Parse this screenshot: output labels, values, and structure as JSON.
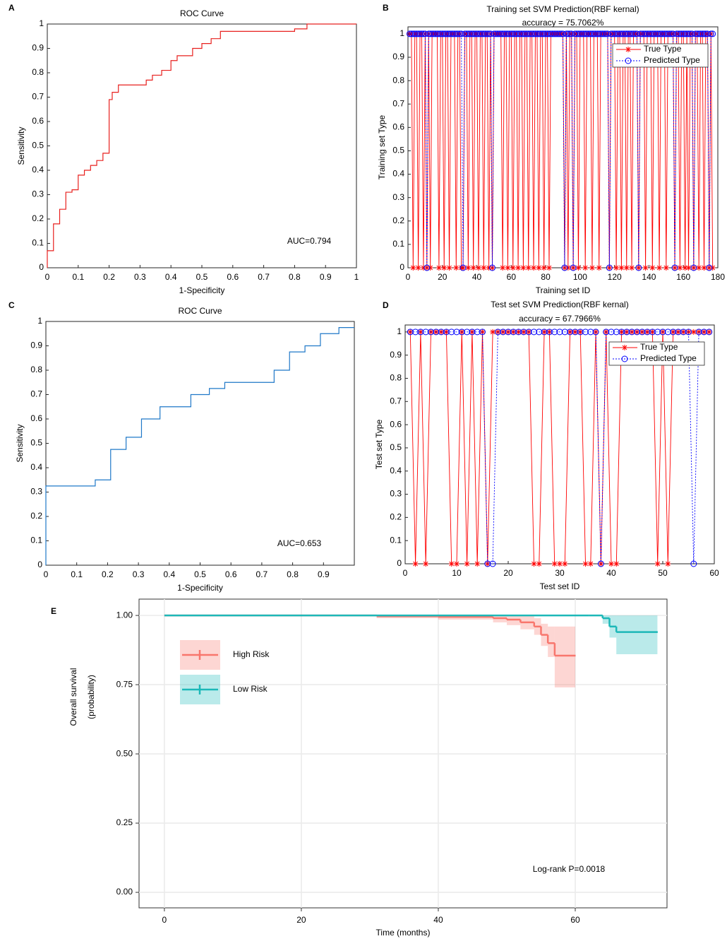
{
  "chart_data": [
    {
      "panel": "A",
      "type": "line",
      "title": "ROC Curve",
      "xlabel": "1-Specificity",
      "ylabel": "Sensitivity",
      "annotation": "AUC=0.794",
      "xlim": [
        0,
        1
      ],
      "ylim": [
        0,
        1
      ],
      "xticks": [
        0,
        0.1,
        0.2,
        0.3,
        0.4,
        0.5,
        0.6,
        0.7,
        0.8,
        0.9,
        1
      ],
      "yticks": [
        0,
        0.1,
        0.2,
        0.3,
        0.4,
        0.5,
        0.6,
        0.7,
        0.8,
        0.9,
        1
      ],
      "series": [
        {
          "color": "#e8201e",
          "x": [
            0,
            0,
            0.02,
            0.02,
            0.04,
            0.04,
            0.06,
            0.06,
            0.08,
            0.08,
            0.1,
            0.1,
            0.12,
            0.12,
            0.14,
            0.14,
            0.16,
            0.16,
            0.18,
            0.18,
            0.2,
            0.2,
            0.21,
            0.21,
            0.23,
            0.23,
            0.32,
            0.32,
            0.34,
            0.34,
            0.37,
            0.37,
            0.4,
            0.4,
            0.42,
            0.42,
            0.47,
            0.47,
            0.5,
            0.5,
            0.53,
            0.53,
            0.56,
            0.56,
            0.8,
            0.8,
            0.84,
            0.84,
            1
          ],
          "values": [
            0,
            0.07,
            0.07,
            0.18,
            0.18,
            0.24,
            0.24,
            0.31,
            0.31,
            0.32,
            0.32,
            0.38,
            0.38,
            0.4,
            0.4,
            0.42,
            0.42,
            0.44,
            0.44,
            0.47,
            0.47,
            0.69,
            0.69,
            0.72,
            0.72,
            0.75,
            0.75,
            0.77,
            0.77,
            0.79,
            0.79,
            0.81,
            0.81,
            0.85,
            0.85,
            0.87,
            0.87,
            0.9,
            0.9,
            0.92,
            0.92,
            0.94,
            0.94,
            0.97,
            0.97,
            0.98,
            0.98,
            1,
            1
          ]
        }
      ]
    },
    {
      "panel": "B",
      "type": "line",
      "title": [
        "Training set SVM Prediction(RBF kernal)",
        "accuracy = 75.7062%"
      ],
      "xlabel": "Training set ID",
      "ylabel": "Training set Type",
      "xlim": [
        0,
        180
      ],
      "ylim": [
        0,
        1.03
      ],
      "xticks": [
        0,
        20,
        40,
        60,
        80,
        100,
        120,
        140,
        160,
        180
      ],
      "yticks": [
        0,
        0.1,
        0.2,
        0.3,
        0.4,
        0.5,
        0.6,
        0.7,
        0.8,
        0.9,
        1
      ],
      "legend": "upper right",
      "x": [
        1,
        2,
        3,
        4,
        5,
        6,
        7,
        8,
        9,
        10,
        11,
        12,
        13,
        14,
        15,
        16,
        17,
        18,
        19,
        20,
        21,
        22,
        23,
        24,
        25,
        26,
        27,
        28,
        29,
        30,
        31,
        32,
        33,
        34,
        35,
        36,
        37,
        38,
        39,
        40,
        41,
        42,
        43,
        44,
        45,
        46,
        47,
        48,
        49,
        50,
        51,
        52,
        53,
        54,
        55,
        56,
        57,
        58,
        59,
        60,
        61,
        62,
        63,
        64,
        65,
        66,
        67,
        68,
        69,
        70,
        71,
        72,
        73,
        74,
        75,
        76,
        77,
        78,
        79,
        80,
        81,
        82,
        83,
        84,
        85,
        86,
        87,
        88,
        89,
        90,
        91,
        92,
        93,
        94,
        95,
        96,
        97,
        98,
        99,
        100,
        101,
        102,
        103,
        104,
        105,
        106,
        107,
        108,
        109,
        110,
        111,
        112,
        113,
        114,
        115,
        116,
        117,
        118,
        119,
        120,
        121,
        122,
        123,
        124,
        125,
        126,
        127,
        128,
        129,
        130,
        131,
        132,
        133,
        134,
        135,
        136,
        137,
        138,
        139,
        140,
        141,
        142,
        143,
        144,
        145,
        146,
        147,
        148,
        149,
        150,
        151,
        152,
        153,
        154,
        155,
        156,
        157,
        158,
        159,
        160,
        161,
        162,
        163,
        164,
        165,
        166,
        167,
        168,
        169,
        170,
        171,
        172,
        173,
        174,
        175,
        176,
        177
      ],
      "series": [
        {
          "name": "True Type",
          "color": "#ff0000",
          "marker": "star",
          "linestyle": "solid",
          "values": [
            1,
            1,
            0,
            1,
            1,
            0,
            1,
            1,
            0,
            1,
            0,
            1,
            0,
            1,
            1,
            1,
            1,
            0,
            1,
            1,
            0,
            1,
            1,
            0,
            1,
            1,
            1,
            0,
            1,
            1,
            0,
            0,
            1,
            1,
            0,
            1,
            1,
            0,
            1,
            1,
            0,
            1,
            1,
            0,
            1,
            1,
            0,
            1,
            0,
            1,
            1,
            1,
            1,
            1,
            0,
            1,
            1,
            0,
            1,
            1,
            0,
            1,
            1,
            0,
            1,
            1,
            0,
            1,
            1,
            0,
            1,
            1,
            0,
            1,
            1,
            0,
            1,
            1,
            0,
            1,
            1,
            0,
            1,
            1,
            1,
            1,
            1,
            1,
            1,
            1,
            0,
            1,
            0,
            1,
            1,
            0,
            1,
            1,
            0,
            1,
            1,
            1,
            0,
            1,
            1,
            1,
            0,
            1,
            1,
            1,
            0,
            1,
            1,
            1,
            1,
            1,
            0,
            1,
            1,
            1,
            0,
            1,
            1,
            0,
            1,
            1,
            0,
            1,
            1,
            0,
            1,
            1,
            1,
            0,
            1,
            1,
            1,
            0,
            1,
            1,
            1,
            0,
            1,
            1,
            1,
            0,
            1,
            1,
            1,
            0,
            1,
            1,
            1,
            1,
            0,
            1,
            1,
            0,
            1,
            1,
            0,
            1,
            0,
            1,
            1,
            0,
            1,
            1,
            0,
            1,
            1,
            0,
            1,
            1,
            0,
            1,
            0
          ]
        },
        {
          "name": "Predicted Type",
          "color": "#0000ff",
          "marker": "circle",
          "linestyle": "dotted",
          "values": [
            1,
            1,
            1,
            1,
            1,
            1,
            1,
            1,
            1,
            1,
            0,
            1,
            1,
            1,
            1,
            1,
            1,
            1,
            1,
            1,
            1,
            1,
            1,
            1,
            1,
            1,
            1,
            1,
            1,
            1,
            1,
            0,
            1,
            1,
            1,
            1,
            1,
            1,
            1,
            1,
            1,
            1,
            1,
            1,
            1,
            1,
            1,
            1,
            0,
            1,
            1,
            1,
            1,
            1,
            1,
            1,
            1,
            1,
            1,
            1,
            1,
            1,
            1,
            1,
            1,
            1,
            1,
            1,
            1,
            1,
            1,
            1,
            1,
            1,
            1,
            1,
            1,
            1,
            1,
            1,
            1,
            1,
            1,
            1,
            1,
            1,
            1,
            1,
            1,
            1,
            0,
            1,
            1,
            1,
            1,
            0,
            1,
            1,
            1,
            1,
            1,
            1,
            1,
            1,
            1,
            1,
            1,
            1,
            1,
            1,
            1,
            1,
            1,
            1,
            1,
            1,
            0,
            1,
            1,
            1,
            1,
            1,
            1,
            1,
            1,
            1,
            1,
            1,
            1,
            1,
            1,
            1,
            1,
            0,
            1,
            1,
            1,
            1,
            1,
            1,
            1,
            1,
            1,
            1,
            1,
            1,
            1,
            1,
            1,
            1,
            1,
            1,
            1,
            1,
            0,
            1,
            1,
            1,
            1,
            1,
            1,
            1,
            1,
            1,
            1,
            0,
            1,
            1,
            1,
            1,
            1,
            1,
            1,
            1,
            0,
            1,
            1
          ]
        }
      ]
    },
    {
      "panel": "C",
      "type": "line",
      "title": "ROC Curve",
      "xlabel": "1-Specificity",
      "ylabel": "Sensitivity",
      "annotation": "AUC=0.653",
      "xlim": [
        0,
        1
      ],
      "ylim": [
        0,
        1
      ],
      "xticks": [
        0,
        0.1,
        0.2,
        0.3,
        0.4,
        0.5,
        0.6,
        0.7,
        0.8,
        0.9
      ],
      "yticks": [
        0,
        0.1,
        0.2,
        0.3,
        0.4,
        0.5,
        0.6,
        0.7,
        0.8,
        0.9,
        1
      ],
      "series": [
        {
          "color": "#1f78c8",
          "x": [
            0,
            0,
            0.16,
            0.16,
            0.21,
            0.21,
            0.26,
            0.26,
            0.31,
            0.31,
            0.37,
            0.37,
            0.47,
            0.47,
            0.53,
            0.53,
            0.58,
            0.58,
            0.74,
            0.74,
            0.79,
            0.79,
            0.84,
            0.84,
            0.89,
            0.89,
            0.95,
            0.95,
            1
          ],
          "values": [
            0,
            0.325,
            0.325,
            0.35,
            0.35,
            0.475,
            0.475,
            0.525,
            0.525,
            0.6,
            0.6,
            0.65,
            0.65,
            0.7,
            0.7,
            0.725,
            0.725,
            0.75,
            0.75,
            0.8,
            0.8,
            0.875,
            0.875,
            0.9,
            0.9,
            0.95,
            0.95,
            0.975,
            0.975
          ]
        }
      ]
    },
    {
      "panel": "D",
      "type": "line",
      "title": [
        "Test set SVM Prediction(RBF kernal)",
        "accuracy = 67.7966%"
      ],
      "xlabel": "Test set ID",
      "ylabel": "Test set Type",
      "xlim": [
        0,
        60
      ],
      "ylim": [
        0,
        1.03
      ],
      "xticks": [
        0,
        10,
        20,
        30,
        40,
        50,
        60
      ],
      "yticks": [
        0,
        0.1,
        0.2,
        0.3,
        0.4,
        0.5,
        0.6,
        0.7,
        0.8,
        0.9,
        1
      ],
      "legend": "upper right",
      "x": [
        1,
        2,
        3,
        4,
        5,
        6,
        7,
        8,
        9,
        10,
        11,
        12,
        13,
        14,
        15,
        16,
        17,
        18,
        19,
        20,
        21,
        22,
        23,
        24,
        25,
        26,
        27,
        28,
        29,
        30,
        31,
        32,
        33,
        34,
        35,
        36,
        37,
        38,
        39,
        40,
        41,
        42,
        43,
        44,
        45,
        46,
        47,
        48,
        49,
        50,
        51,
        52,
        53,
        54,
        55,
        56,
        57,
        58,
        59
      ],
      "series": [
        {
          "name": "True Type",
          "color": "#ff0000",
          "marker": "star",
          "linestyle": "solid",
          "values": [
            1,
            0,
            1,
            0,
            1,
            1,
            1,
            1,
            0,
            0,
            1,
            0,
            1,
            0,
            1,
            0,
            1,
            1,
            1,
            1,
            1,
            1,
            1,
            1,
            0,
            0,
            1,
            1,
            0,
            0,
            0,
            1,
            1,
            1,
            0,
            0,
            1,
            0,
            1,
            0,
            0,
            1,
            1,
            1,
            1,
            1,
            1,
            1,
            0,
            1,
            0,
            1,
            1,
            1,
            1,
            1,
            1,
            1,
            1
          ]
        },
        {
          "name": "Predicted Type",
          "color": "#0000ff",
          "marker": "circle",
          "linestyle": "dotted",
          "values": [
            1,
            1,
            1,
            1,
            1,
            1,
            1,
            1,
            1,
            1,
            1,
            1,
            1,
            1,
            1,
            0,
            0,
            1,
            1,
            1,
            1,
            1,
            1,
            1,
            1,
            1,
            1,
            1,
            1,
            1,
            1,
            1,
            1,
            1,
            1,
            1,
            1,
            0,
            1,
            1,
            1,
            1,
            1,
            1,
            1,
            1,
            1,
            1,
            1,
            1,
            1,
            1,
            1,
            1,
            1,
            0,
            1,
            1,
            1
          ]
        }
      ]
    },
    {
      "panel": "E",
      "type": "survival",
      "xlabel": "Time (months)",
      "ylabel": [
        "Overall survival",
        "(probability)"
      ],
      "annotation": "Log-rank P=0.0018",
      "xlim": [
        -3.7,
        73.4
      ],
      "ylim": [
        -0.056,
        1.059
      ],
      "xticks": [
        0,
        20,
        40,
        60
      ],
      "yticks": [
        {
          "value": 0,
          "label": "0.00"
        },
        {
          "value": 0.25,
          "label": "0.25"
        },
        {
          "value": 0.5,
          "label": "0.50"
        },
        {
          "value": 0.75,
          "label": "0.75"
        },
        {
          "value": 1,
          "label": "1.00"
        }
      ],
      "grid": true,
      "legend": "upper left",
      "series": [
        {
          "name": "High Risk",
          "color": "#f8766d",
          "x": [
            0,
            18,
            31,
            40,
            48,
            50,
            52,
            54,
            55,
            56,
            57,
            60
          ],
          "values": [
            1,
            1,
            0.997,
            0.995,
            0.99,
            0.985,
            0.975,
            0.96,
            0.93,
            0.9,
            0.855,
            0.855
          ],
          "lower": [
            1,
            1,
            0.99,
            0.985,
            0.975,
            0.965,
            0.95,
            0.93,
            0.89,
            0.85,
            0.74,
            0.74
          ],
          "upper": [
            1,
            1,
            1,
            1,
            1,
            1,
            1,
            0.99,
            0.97,
            0.96,
            0.96,
            0.96
          ]
        },
        {
          "name": "Low Risk",
          "color": "#1cb8b8",
          "x": [
            0,
            62,
            64,
            65,
            66,
            72
          ],
          "values": [
            1,
            1,
            0.99,
            0.96,
            0.94,
            0.94
          ],
          "lower": [
            1,
            1,
            0.97,
            0.92,
            0.86,
            0.86
          ],
          "upper": [
            1,
            1,
            1,
            1,
            1,
            1
          ]
        }
      ]
    }
  ]
}
